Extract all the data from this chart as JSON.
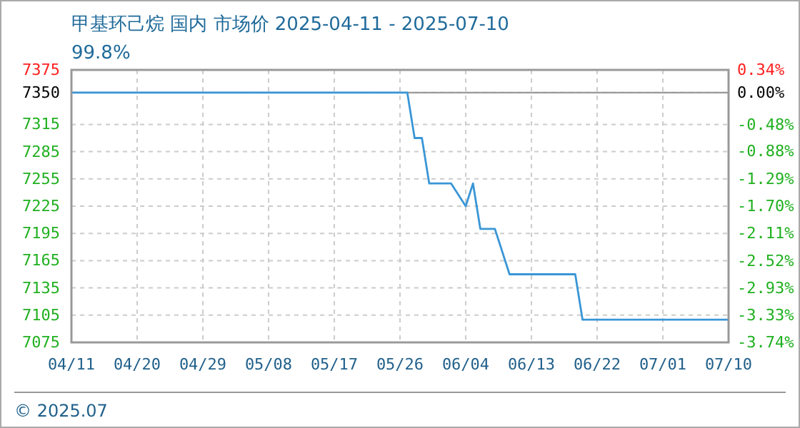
{
  "chart_data": {
    "type": "line",
    "title": "甲基环己烷 国内 市场价 2025-04-11 - 2025-07-10",
    "subtitle": "99.8%",
    "annotations": [
      "© 2025.07"
    ],
    "x": [
      "2025-04-11",
      "2025-05-27",
      "2025-05-28",
      "2025-05-29",
      "2025-05-30",
      "2025-06-02",
      "2025-06-04",
      "2025-06-05",
      "2025-06-06",
      "2025-06-08",
      "2025-06-10",
      "2025-06-19",
      "2025-06-20",
      "2025-07-10"
    ],
    "series": [
      {
        "color": "#3a96d6",
        "values": [
          7350,
          7350,
          7300,
          7300,
          7250,
          7250,
          7225,
          7250,
          7200,
          7200,
          7150,
          7150,
          7100,
          7100
        ]
      }
    ],
    "xlim": [
      "2025-04-11",
      "2025-07-10"
    ],
    "xticks": [
      {
        "value": "2025-04-11",
        "label": "04/11"
      },
      {
        "value": "2025-04-20",
        "label": "04/20"
      },
      {
        "value": "2025-04-29",
        "label": "04/29"
      },
      {
        "value": "2025-05-08",
        "label": "05/08"
      },
      {
        "value": "2025-05-17",
        "label": "05/17"
      },
      {
        "value": "2025-05-26",
        "label": "05/26"
      },
      {
        "value": "2025-06-04",
        "label": "06/04"
      },
      {
        "value": "2025-06-13",
        "label": "06/13"
      },
      {
        "value": "2025-06-22",
        "label": "06/22"
      },
      {
        "value": "2025-07-01",
        "label": "07/01"
      },
      {
        "value": "2025-07-10",
        "label": "07/10"
      }
    ],
    "ylim": [
      7075,
      7375
    ],
    "yticks": [
      7075,
      7105,
      7135,
      7165,
      7195,
      7225,
      7255,
      7285,
      7315,
      7350,
      7375
    ],
    "y2lim": [
      -3.74,
      0.34
    ],
    "y2ticks": [
      {
        "value": -3.74,
        "label": "-3.74%"
      },
      {
        "value": -3.33,
        "label": "-3.33%"
      },
      {
        "value": -2.93,
        "label": "-2.93%"
      },
      {
        "value": -2.52,
        "label": "-2.52%"
      },
      {
        "value": -2.11,
        "label": "-2.11%"
      },
      {
        "value": -1.7,
        "label": "-1.70%"
      },
      {
        "value": -1.29,
        "label": "-1.29%"
      },
      {
        "value": -0.88,
        "label": "-0.88%"
      },
      {
        "value": -0.48,
        "label": "-0.48%"
      },
      {
        "value": 0,
        "label": "0.00%"
      },
      {
        "value": 0.34,
        "label": "0.34%"
      }
    ],
    "grid": true,
    "ref_lines": [
      {
        "axis": "y",
        "value": 7350,
        "color": "#999999"
      }
    ]
  }
}
